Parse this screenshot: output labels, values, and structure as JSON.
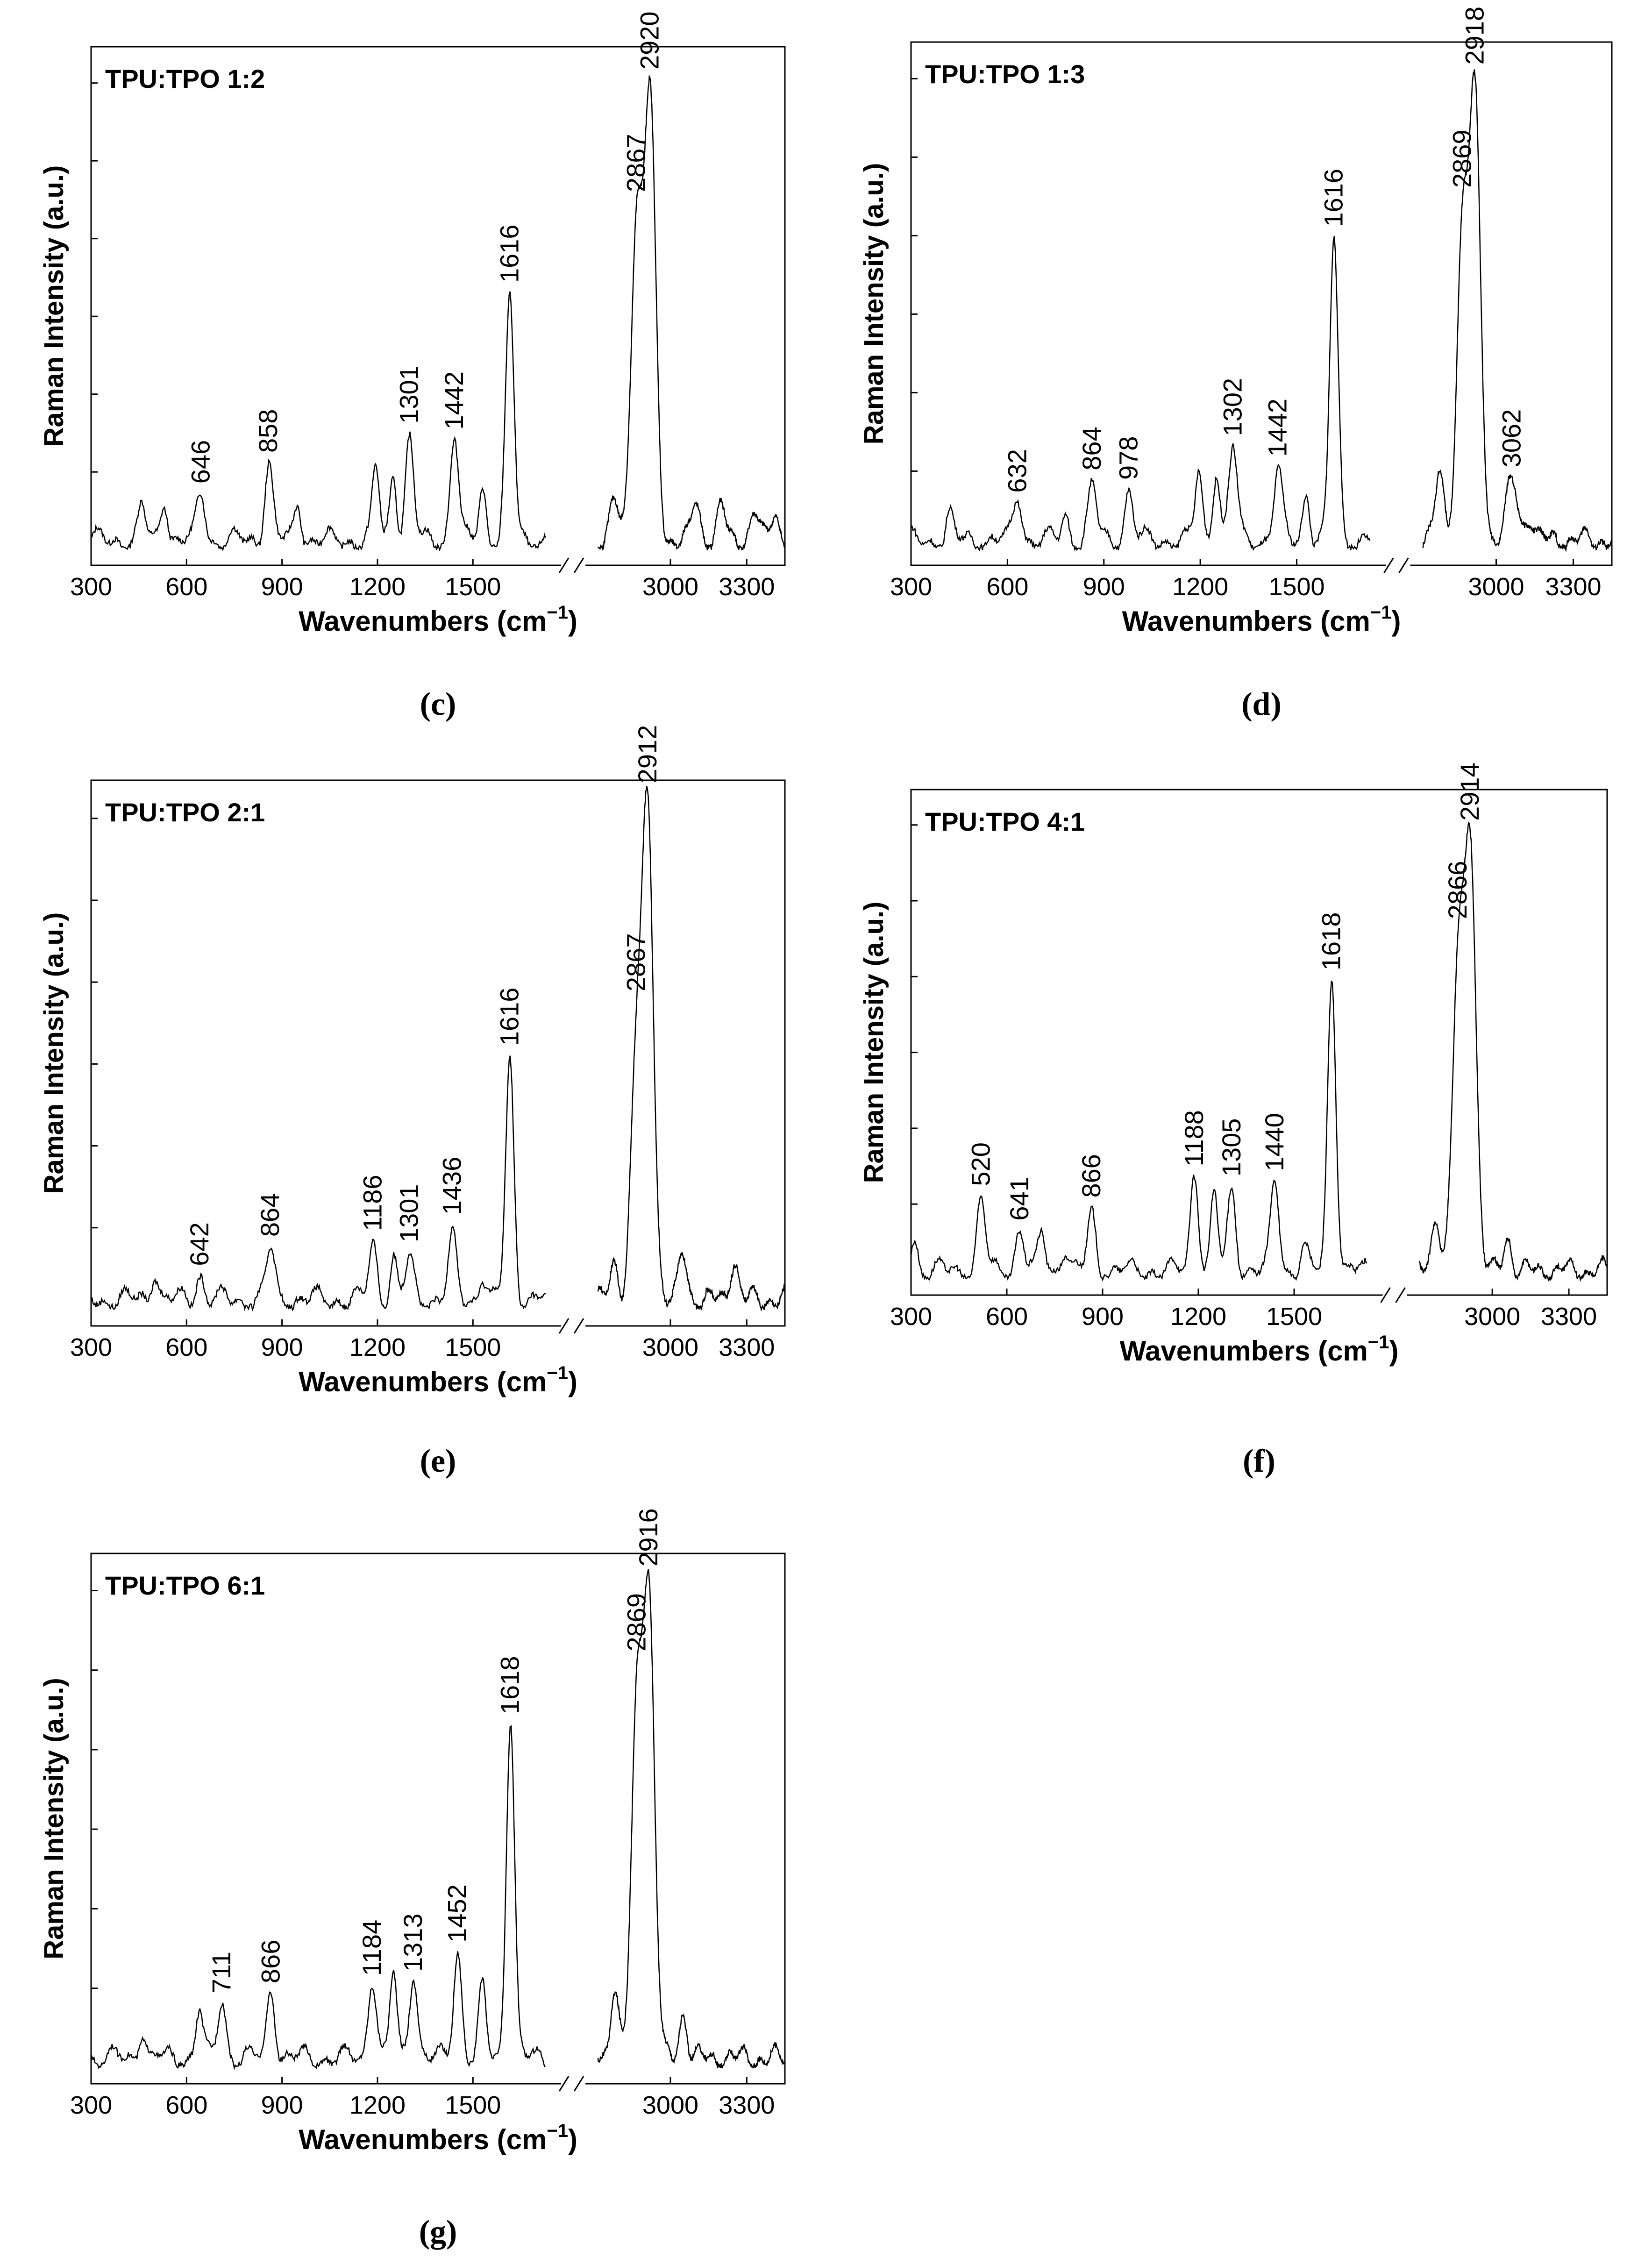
{
  "figure": {
    "description_labels": [
      "(c)",
      "(d)",
      "(e)",
      "(f)",
      "(g)"
    ]
  },
  "chart_data": [
    {
      "type": "line",
      "panel": "c",
      "caption": "(c)",
      "title": "TPU:TPO 1:2",
      "xlabel": "Wavenumbers (cm",
      "xlabel_sup": "−1",
      "xlabel_close": ")",
      "ylabel": "Raman Intensity (a.u.)",
      "x_ticks": [
        "300",
        "600",
        "900",
        "1200",
        "1500",
        "3000",
        "3300"
      ],
      "x_range_low": [
        300,
        1750
      ],
      "x_range_high": [
        2700,
        3450
      ],
      "y_range": [
        0,
        1.0
      ],
      "peaks": [
        {
          "x": 646,
          "y": 0.1,
          "label": "646"
        },
        {
          "x": 858,
          "y": 0.16,
          "label": "858"
        },
        {
          "x": 1301,
          "y": 0.21,
          "label": "1301"
        },
        {
          "x": 1442,
          "y": 0.22,
          "label": "1442"
        },
        {
          "x": 1616,
          "y": 0.5,
          "label": "1616"
        },
        {
          "x": 2867,
          "y": 0.66,
          "label": "2867"
        },
        {
          "x": 2920,
          "y": 0.91,
          "label": "2920"
        }
      ],
      "minor_peaks": [
        {
          "x": 460,
          "y": 0.07
        },
        {
          "x": 530,
          "y": 0.09
        },
        {
          "x": 950,
          "y": 0.08
        },
        {
          "x": 1195,
          "y": 0.15
        },
        {
          "x": 1250,
          "y": 0.14
        },
        {
          "x": 1530,
          "y": 0.11
        },
        {
          "x": 2780,
          "y": 0.08
        },
        {
          "x": 3100,
          "y": 0.08
        },
        {
          "x": 3200,
          "y": 0.07
        },
        {
          "x": 3330,
          "y": 0.06
        },
        {
          "x": 3410,
          "y": 0.06
        }
      ]
    },
    {
      "type": "line",
      "panel": "d",
      "caption": "(d)",
      "title": "TPU:TPO 1:3",
      "xlabel": "Wavenumbers (cm",
      "xlabel_sup": "−1",
      "xlabel_close": ")",
      "ylabel": "Raman Intensity (a.u.)",
      "x_ticks": [
        "300",
        "600",
        "900",
        "1200",
        "1500",
        "3000",
        "3300"
      ],
      "x_range_low": [
        300,
        1750
      ],
      "x_range_high": [
        2700,
        3450
      ],
      "y_range": [
        0,
        1.0
      ],
      "peaks": [
        {
          "x": 632,
          "y": 0.09,
          "label": "632"
        },
        {
          "x": 864,
          "y": 0.11,
          "label": "864"
        },
        {
          "x": 978,
          "y": 0.1,
          "label": "978"
        },
        {
          "x": 1302,
          "y": 0.19,
          "label": "1302"
        },
        {
          "x": 1442,
          "y": 0.14,
          "label": "1442"
        },
        {
          "x": 1616,
          "y": 0.62,
          "label": "1616"
        },
        {
          "x": 2869,
          "y": 0.62,
          "label": "2869"
        },
        {
          "x": 2918,
          "y": 0.88,
          "label": "2918"
        },
        {
          "x": 3062,
          "y": 0.12,
          "label": "3062"
        }
      ],
      "minor_peaks": [
        {
          "x": 420,
          "y": 0.05
        },
        {
          "x": 780,
          "y": 0.05
        },
        {
          "x": 1195,
          "y": 0.14
        },
        {
          "x": 1250,
          "y": 0.15
        },
        {
          "x": 1530,
          "y": 0.1
        },
        {
          "x": 2780,
          "y": 0.14
        },
        {
          "x": 3130,
          "y": 0.05
        }
      ]
    },
    {
      "type": "line",
      "panel": "e",
      "caption": "(e)",
      "title": "TPU:TPO 2:1",
      "xlabel": "Wavenumbers (cm",
      "xlabel_sup": "−1",
      "xlabel_close": ")",
      "ylabel": "Raman Intensity (a.u.)",
      "x_ticks": [
        "300",
        "600",
        "900",
        "1200",
        "1500",
        "3000",
        "3300"
      ],
      "x_range_low": [
        300,
        1750
      ],
      "x_range_high": [
        2700,
        3450
      ],
      "y_range": [
        0,
        1.0
      ],
      "peaks": [
        {
          "x": 642,
          "y": 0.05,
          "label": "642"
        },
        {
          "x": 864,
          "y": 0.1,
          "label": "864"
        },
        {
          "x": 1186,
          "y": 0.11,
          "label": "1186"
        },
        {
          "x": 1301,
          "y": 0.08,
          "label": "1301"
        },
        {
          "x": 1436,
          "y": 0.12,
          "label": "1436"
        },
        {
          "x": 1616,
          "y": 0.47,
          "label": "1616"
        },
        {
          "x": 2867,
          "y": 0.47,
          "label": "2867"
        },
        {
          "x": 2912,
          "y": 0.93,
          "label": "2912"
        }
      ],
      "minor_peaks": [
        {
          "x": 500,
          "y": 0.06
        },
        {
          "x": 1250,
          "y": 0.08
        },
        {
          "x": 1530,
          "y": 0.05
        },
        {
          "x": 2780,
          "y": 0.07
        },
        {
          "x": 3050,
          "y": 0.09
        },
        {
          "x": 3250,
          "y": 0.08
        }
      ]
    },
    {
      "type": "line",
      "panel": "f",
      "caption": "(f)",
      "title": "TPU:TPO 4:1",
      "xlabel": "Wavenumbers (cm",
      "xlabel_sup": "−1",
      "xlabel_close": ")",
      "ylabel": "Raman Intensity (a.u.)",
      "x_ticks": [
        "300",
        "600",
        "900",
        "1200",
        "1500",
        "3000",
        "3300"
      ],
      "x_range_low": [
        300,
        1750
      ],
      "x_range_high": [
        2700,
        3450
      ],
      "y_range": [
        0,
        1.0
      ],
      "peaks": [
        {
          "x": 520,
          "y": 0.15,
          "label": "520"
        },
        {
          "x": 641,
          "y": 0.09,
          "label": "641"
        },
        {
          "x": 866,
          "y": 0.12,
          "label": "866"
        },
        {
          "x": 1188,
          "y": 0.21,
          "label": "1188"
        },
        {
          "x": 1305,
          "y": 0.17,
          "label": "1305"
        },
        {
          "x": 1440,
          "y": 0.19,
          "label": "1440"
        },
        {
          "x": 1618,
          "y": 0.63,
          "label": "1618"
        },
        {
          "x": 2866,
          "y": 0.63,
          "label": "2866"
        },
        {
          "x": 2914,
          "y": 0.9,
          "label": "2914"
        }
      ],
      "minor_peaks": [
        {
          "x": 310,
          "y": 0.07
        },
        {
          "x": 710,
          "y": 0.08
        },
        {
          "x": 780,
          "y": 0.05
        },
        {
          "x": 1250,
          "y": 0.16
        },
        {
          "x": 1530,
          "y": 0.05
        },
        {
          "x": 2780,
          "y": 0.12
        },
        {
          "x": 3060,
          "y": 0.07
        }
      ]
    },
    {
      "type": "line",
      "panel": "g",
      "caption": "(g)",
      "title": "TPU:TPO 6:1",
      "xlabel": "Wavenumbers (cm",
      "xlabel_sup": "−1",
      "xlabel_close": ")",
      "ylabel": "Raman Intensity (a.u.)",
      "x_ticks": [
        "300",
        "600",
        "900",
        "1200",
        "1500",
        "3000",
        "3300"
      ],
      "x_range_low": [
        300,
        1750
      ],
      "x_range_high": [
        2700,
        3450
      ],
      "y_range": [
        0,
        1.0
      ],
      "peaks": [
        {
          "x": 711,
          "y": 0.12,
          "label": "711"
        },
        {
          "x": 866,
          "y": 0.14,
          "label": "866"
        },
        {
          "x": 1184,
          "y": 0.17,
          "label": "1184"
        },
        {
          "x": 1313,
          "y": 0.18,
          "label": "1313"
        },
        {
          "x": 1452,
          "y": 0.22,
          "label": "1452"
        },
        {
          "x": 1618,
          "y": 0.7,
          "label": "1618"
        },
        {
          "x": 2869,
          "y": 0.7,
          "label": "2869"
        },
        {
          "x": 2916,
          "y": 0.91,
          "label": "2916"
        }
      ],
      "minor_peaks": [
        {
          "x": 460,
          "y": 0.06
        },
        {
          "x": 640,
          "y": 0.1
        },
        {
          "x": 1250,
          "y": 0.17
        },
        {
          "x": 1530,
          "y": 0.14
        },
        {
          "x": 2780,
          "y": 0.15
        },
        {
          "x": 3050,
          "y": 0.09
        }
      ]
    }
  ]
}
